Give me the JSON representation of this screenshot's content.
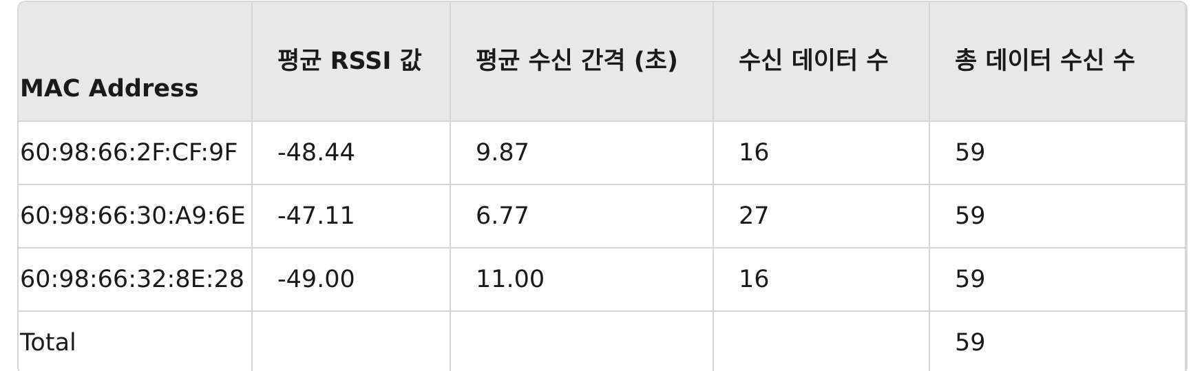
{
  "table": {
    "headers": [
      "MAC Address",
      "평균 RSSI 값",
      "평균 수신 간격 (초)",
      "수신 데이터 수",
      "총 데이터 수신 수"
    ],
    "rows": [
      [
        "60:98:66:2F:CF:9F",
        "-48.44",
        "9.87",
        "16",
        "59"
      ],
      [
        "60:98:66:30:A9:6E",
        "-47.11",
        "6.77",
        "27",
        "59"
      ],
      [
        "60:98:66:32:8E:28",
        "-49.00",
        "11.00",
        "16",
        "59"
      ],
      [
        "Total",
        "",
        "",
        "",
        "59"
      ]
    ]
  },
  "colors": {
    "header_bg": "#e8e8e8",
    "border": "#d6d6d6",
    "text": "#1a1a1a"
  }
}
